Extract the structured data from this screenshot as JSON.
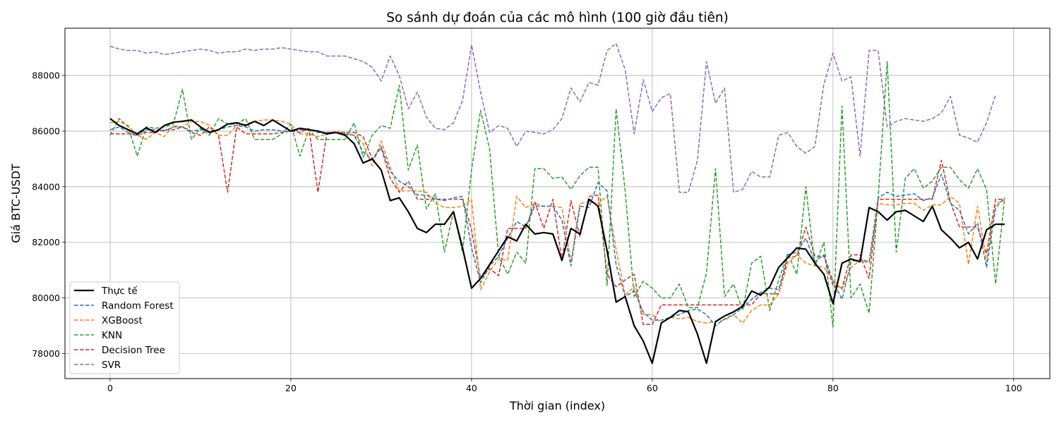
{
  "chart_data": {
    "type": "line",
    "title": "So sánh dự đoán của các mô hình (100 giờ đầu tiên)",
    "xlabel": "Thời gian (index)",
    "ylabel": "Giá BTC-USDT",
    "xlim": [
      -5,
      104
    ],
    "ylim": [
      77100,
      89700
    ],
    "xticks": [
      0,
      20,
      40,
      60,
      80,
      100
    ],
    "yticks": [
      78000,
      80000,
      82000,
      84000,
      86000,
      88000
    ],
    "grid": true,
    "legend_position": "lower-left",
    "series": [
      {
        "name": "Thực tế",
        "color": "#000000",
        "style": "solid",
        "values": [
          86450,
          86200,
          86050,
          85900,
          86120,
          85950,
          86200,
          86320,
          86350,
          86400,
          86150,
          85950,
          86050,
          86250,
          86300,
          86200,
          86350,
          86200,
          86400,
          86200,
          86000,
          86100,
          86050,
          86000,
          85900,
          85950,
          85850,
          85550,
          84850,
          85000,
          84600,
          83500,
          83600,
          83100,
          82500,
          82350,
          82650,
          82650,
          83100,
          81800,
          80350,
          80700,
          81200,
          81700,
          82200,
          82050,
          82650,
          82300,
          82350,
          82300,
          81350,
          82500,
          82300,
          83550,
          83300,
          81700,
          79850,
          80050,
          79000,
          78450,
          77650,
          79100,
          79300,
          79550,
          79500,
          78700,
          77650,
          79150,
          79350,
          79500,
          79700,
          80250,
          80100,
          80400,
          81100,
          81450,
          81800,
          81750,
          81250,
          80850,
          79800,
          81250,
          81400,
          81300,
          83250,
          83100,
          82800,
          83100,
          83150,
          82950,
          82750,
          83300,
          82450,
          82150,
          81800,
          82000,
          81400,
          82450,
          82650,
          82650
        ]
      },
      {
        "name": "Random Forest",
        "color": "#1f77b4",
        "style": "dashed",
        "values": [
          86050,
          86150,
          85950,
          85850,
          86050,
          86050,
          86000,
          86150,
          86150,
          86000,
          86050,
          86000,
          86050,
          86150,
          86200,
          86150,
          86000,
          86050,
          86050,
          86000,
          86000,
          86050,
          86050,
          85950,
          85950,
          85950,
          85900,
          85850,
          85250,
          84950,
          85450,
          84550,
          84200,
          84000,
          83700,
          83700,
          83550,
          83500,
          83600,
          83650,
          81800,
          80550,
          81150,
          81500,
          82150,
          82750,
          82550,
          83300,
          83300,
          83300,
          82800,
          81150,
          83300,
          83250,
          84150,
          83850,
          81200,
          80050,
          80250,
          79500,
          79200,
          79200,
          79300,
          79400,
          79550,
          79600,
          79400,
          79000,
          79250,
          79400,
          79650,
          79950,
          80200,
          80350,
          80300,
          81550,
          81650,
          82150,
          81300,
          81550,
          80600,
          79950,
          81300,
          81400,
          81300,
          83600,
          83800,
          83650,
          83700,
          83750,
          83500,
          83600,
          84450,
          83400,
          83150,
          82300,
          82700,
          81100,
          83250,
          83600
        ]
      },
      {
        "name": "XGBoost",
        "color": "#ff7f0e",
        "style": "dashed",
        "values": [
          86300,
          86350,
          86200,
          85850,
          85700,
          85950,
          85800,
          86200,
          86150,
          86350,
          86350,
          86200,
          85850,
          85850,
          86200,
          86250,
          86350,
          86400,
          86400,
          86350,
          86250,
          85900,
          85900,
          85800,
          85900,
          86000,
          85900,
          85850,
          85550,
          84750,
          85650,
          84700,
          83850,
          83850,
          83850,
          83800,
          83400,
          83250,
          83250,
          83300,
          83550,
          80300,
          80950,
          81400,
          81350,
          83650,
          83250,
          83400,
          83300,
          83300,
          83250,
          81300,
          83400,
          83450,
          83400,
          83650,
          81750,
          80100,
          80400,
          79400,
          79400,
          79100,
          79300,
          79250,
          79300,
          79150,
          79100,
          79150,
          79200,
          79400,
          79100,
          79550,
          79750,
          79750,
          80150,
          81250,
          81550,
          81250,
          81150,
          81100,
          80650,
          80300,
          81100,
          81350,
          81250,
          83400,
          83350,
          83350,
          83400,
          83400,
          83150,
          83350,
          83350,
          83650,
          83400,
          81200,
          83300,
          81300,
          83400,
          83500
        ]
      },
      {
        "name": "KNN",
        "color": "#2ca02c",
        "style": "dashed",
        "values": [
          85850,
          86450,
          86150,
          85100,
          86150,
          86100,
          86150,
          86250,
          87500,
          85700,
          86100,
          85850,
          86450,
          86250,
          86250,
          86450,
          85700,
          85700,
          85700,
          85900,
          86250,
          85100,
          86050,
          85700,
          85700,
          85700,
          85700,
          86300,
          85050,
          85850,
          86200,
          86100,
          87650,
          84600,
          85500,
          83200,
          83750,
          81650,
          83100,
          81650,
          84600,
          86750,
          85350,
          81500,
          80850,
          81650,
          81250,
          84650,
          84650,
          84300,
          84350,
          83900,
          84400,
          84700,
          84700,
          80450,
          86800,
          83850,
          80050,
          80600,
          80350,
          80000,
          80000,
          80500,
          79650,
          79650,
          80900,
          84650,
          80050,
          80500,
          79550,
          81250,
          81500,
          79550,
          80650,
          81600,
          80850,
          84000,
          81150,
          82000,
          78950,
          86900,
          80000,
          80500,
          79450,
          83600,
          88500,
          81650,
          84300,
          84650,
          83950,
          84200,
          84700,
          84700,
          84250,
          83950,
          84650,
          83900,
          80500,
          83600
        ]
      },
      {
        "name": "Decision Tree",
        "color": "#d62728",
        "style": "dashed",
        "values": [
          85900,
          85900,
          85900,
          85850,
          85950,
          85950,
          86050,
          86050,
          86150,
          85950,
          85850,
          86150,
          85850,
          83800,
          86150,
          85900,
          85900,
          85900,
          85900,
          85950,
          86000,
          85950,
          86100,
          83800,
          85950,
          85950,
          85950,
          85950,
          85800,
          85000,
          85400,
          84300,
          83800,
          84200,
          83550,
          83550,
          83550,
          83550,
          83550,
          83550,
          82450,
          80700,
          81050,
          80800,
          82500,
          82500,
          82500,
          83450,
          82500,
          83550,
          81350,
          83500,
          82200,
          83650,
          83700,
          80850,
          80400,
          80650,
          80850,
          79050,
          79050,
          79750,
          79750,
          79750,
          79750,
          79750,
          79750,
          79750,
          79750,
          79750,
          79750,
          79750,
          80150,
          80150,
          80150,
          81450,
          81500,
          82550,
          81500,
          81500,
          80450,
          80350,
          81550,
          81550,
          80700,
          83550,
          83550,
          83550,
          83550,
          83550,
          83550,
          83550,
          84950,
          83450,
          82550,
          82550,
          82550,
          81600,
          83550,
          83550
        ]
      },
      {
        "name": "SVR",
        "color": "#9467bd",
        "style": "dashed",
        "values": [
          89050,
          88950,
          88900,
          88900,
          88800,
          88850,
          88750,
          88800,
          88850,
          88900,
          88950,
          88900,
          88800,
          88850,
          88850,
          88950,
          88900,
          88950,
          88950,
          89000,
          88950,
          88900,
          88850,
          88850,
          88700,
          88700,
          88700,
          88600,
          88500,
          88300,
          87800,
          88700,
          88000,
          86800,
          87400,
          86500,
          86100,
          86050,
          86300,
          87100,
          89100,
          87400,
          85950,
          86200,
          86100,
          85450,
          86000,
          85950,
          85900,
          86050,
          86450,
          87550,
          87050,
          87750,
          87650,
          88900,
          89150,
          88200,
          85900,
          87850,
          86700,
          87200,
          87350,
          83800,
          83800,
          84950,
          88500,
          87000,
          87550,
          83800,
          83900,
          84550,
          84350,
          84350,
          85850,
          85950,
          85450,
          85200,
          85450,
          87700,
          88800,
          87800,
          87950,
          85100,
          88900,
          88900,
          86150,
          86350,
          86450,
          86400,
          86350,
          86450,
          86650,
          87250,
          85850,
          85750,
          85600,
          86300,
          87300,
          null
        ]
      }
    ]
  }
}
